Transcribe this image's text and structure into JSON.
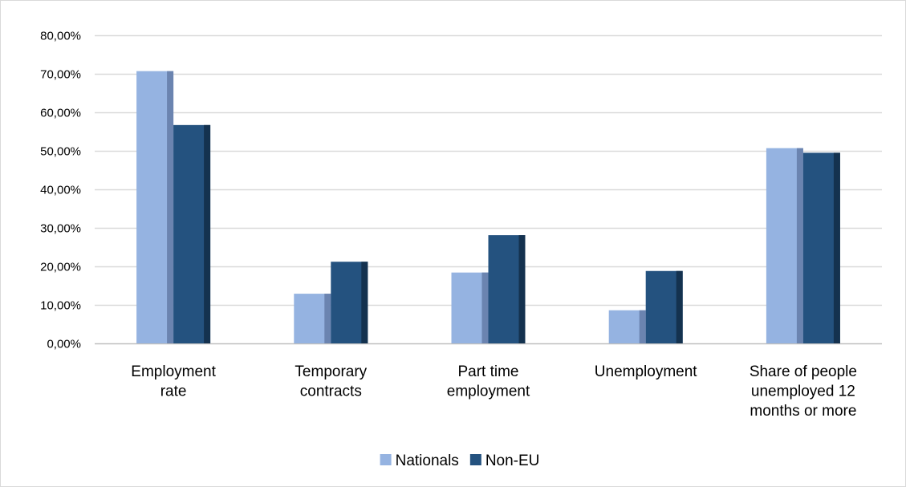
{
  "chart_data": {
    "type": "bar",
    "categories": [
      [
        "Employment",
        "rate"
      ],
      [
        "Temporary",
        "contracts"
      ],
      [
        "Part time",
        "employment"
      ],
      [
        "Unemployment"
      ],
      [
        "Share of people",
        "unemployed 12",
        "months or more"
      ]
    ],
    "series": [
      {
        "name": "Nationals",
        "color": "#95b3e1",
        "shade": "#6b84b0",
        "values": [
          0.707,
          0.129,
          0.184,
          0.086,
          0.507
        ]
      },
      {
        "name": "Non-EU",
        "color": "#24527f",
        "shade": "#14324f",
        "values": [
          0.567,
          0.212,
          0.281,
          0.188,
          0.495
        ]
      }
    ],
    "ylim": [
      0,
      0.8
    ],
    "yticks": [
      0,
      0.1,
      0.2,
      0.3,
      0.4,
      0.5,
      0.6,
      0.7,
      0.8
    ],
    "ytick_labels": [
      "0,00%",
      "10,00%",
      "20,00%",
      "30,00%",
      "40,00%",
      "50,00%",
      "60,00%",
      "70,00%",
      "80,00%"
    ],
    "title": "",
    "xlabel": "",
    "ylabel": "",
    "grid": true,
    "legend_position": "bottom"
  }
}
